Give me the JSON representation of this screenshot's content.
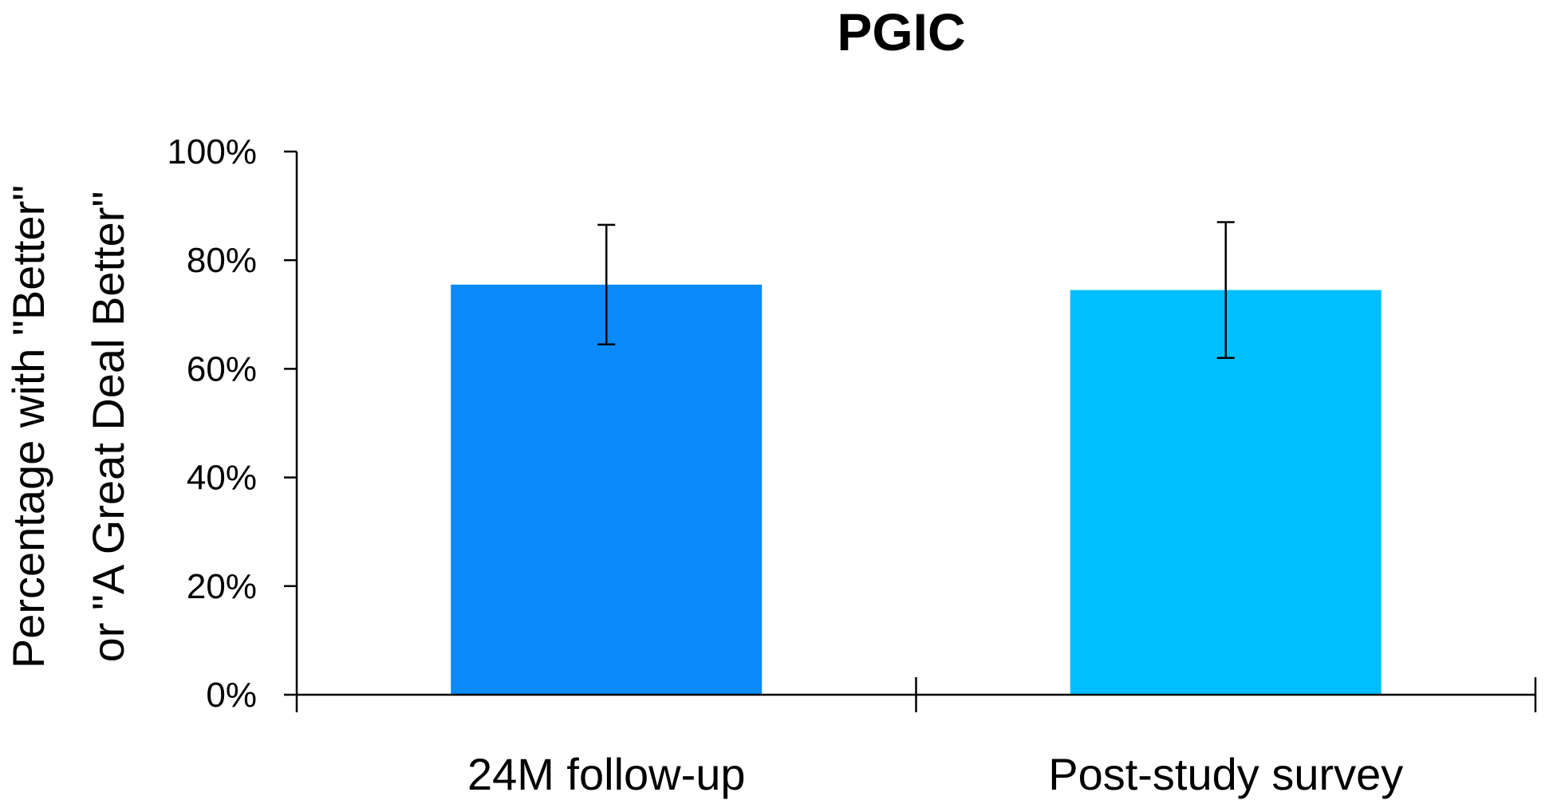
{
  "chart_data": {
    "type": "bar",
    "title": "PGIC",
    "ylabel_lines": [
      "Percentage with \"Better\"",
      "or \"A Great Deal Better\""
    ],
    "xlabel": "",
    "categories": [
      "24M follow-up",
      "Post-study survey"
    ],
    "values": [
      75.5,
      74.5
    ],
    "error_low": [
      64.5,
      62
    ],
    "error_high": [
      86.5,
      87
    ],
    "colors": [
      "#0A8AFB",
      "#00BEFF"
    ],
    "ylim": [
      0,
      100
    ],
    "yticks": [
      0,
      20,
      40,
      60,
      80,
      100
    ],
    "ytick_labels": [
      "0%",
      "20%",
      "40%",
      "60%",
      "80%",
      "100%"
    ],
    "grid": false,
    "legend": "none"
  }
}
